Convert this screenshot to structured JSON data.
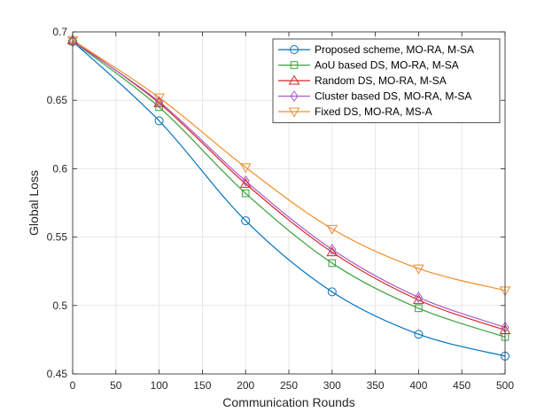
{
  "chart_data": {
    "type": "line",
    "xlabel": "Communication Rounds",
    "ylabel": "Global Loss",
    "xlim": [
      0,
      500
    ],
    "ylim": [
      0.45,
      0.7
    ],
    "xticks": [
      0,
      50,
      100,
      150,
      200,
      250,
      300,
      350,
      400,
      450,
      500
    ],
    "yticks": [
      0.45,
      0.5,
      0.55,
      0.6,
      0.65,
      0.7
    ],
    "xtick_labels": [
      "0",
      "50",
      "100",
      "150",
      "200",
      "250",
      "300",
      "350",
      "400",
      "450",
      "500"
    ],
    "ytick_labels": [
      "0.45",
      "0.5",
      "0.55",
      "0.6",
      "0.65",
      "0.7"
    ],
    "grid": true,
    "legend_position": "top-right",
    "x": [
      0,
      100,
      200,
      300,
      400,
      500
    ],
    "series": [
      {
        "name": "Proposed scheme, MO-RA, M-SA",
        "color": "#0072BD",
        "marker": "circle",
        "values": [
          0.693,
          0.635,
          0.562,
          0.51,
          0.479,
          0.463
        ]
      },
      {
        "name": "AoU based DS, MO-RA, M-SA",
        "color": "#3BA23B",
        "marker": "square",
        "values": [
          0.693,
          0.645,
          0.582,
          0.531,
          0.498,
          0.477
        ]
      },
      {
        "name": "Random DS, MO-RA, M-SA",
        "color": "#D62728",
        "marker": "triangle-up",
        "values": [
          0.694,
          0.648,
          0.589,
          0.539,
          0.504,
          0.482
        ]
      },
      {
        "name": "Cluster based DS, MO-RA, M-SA",
        "color": "#A85CC8",
        "marker": "diamond",
        "values": [
          0.693,
          0.649,
          0.591,
          0.541,
          0.506,
          0.484
        ]
      },
      {
        "name": "Fixed DS, MO-RA, MS-A",
        "color": "#F28E2B",
        "marker": "triangle-down",
        "values": [
          0.694,
          0.652,
          0.601,
          0.556,
          0.527,
          0.511
        ]
      }
    ]
  }
}
